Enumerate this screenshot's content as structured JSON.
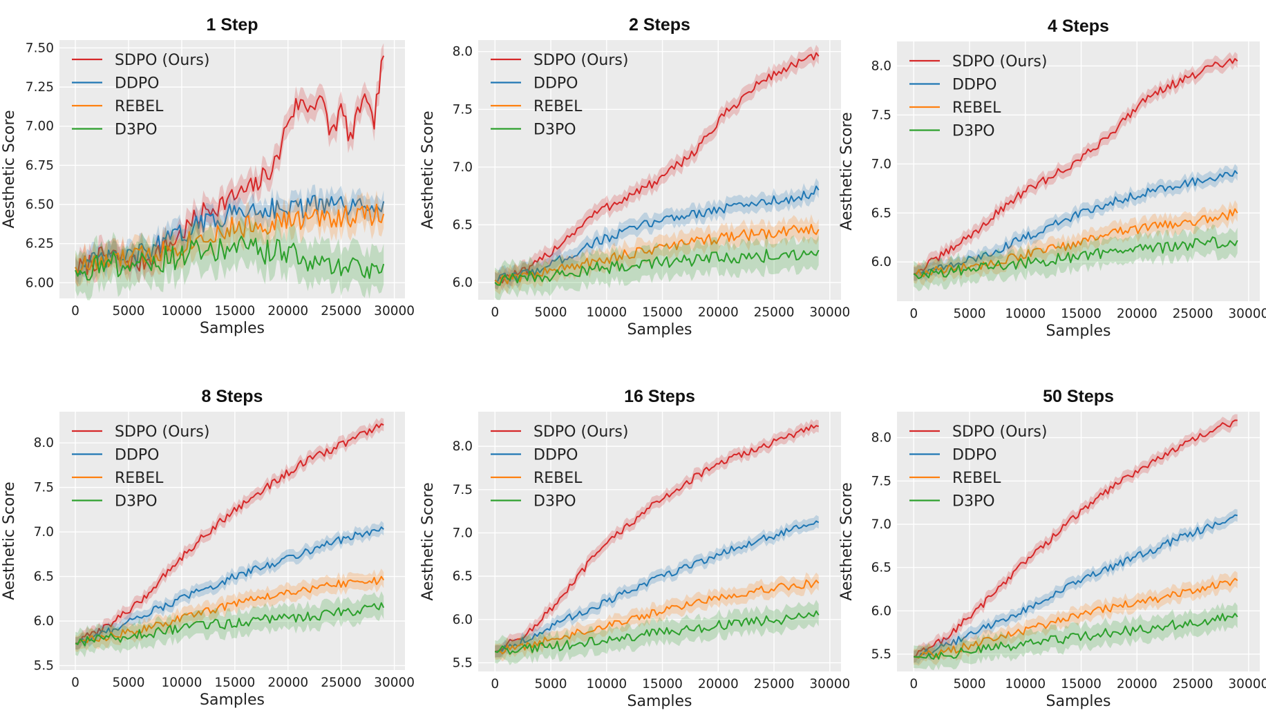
{
  "colors": {
    "SDPO (Ours)": "#d62728",
    "DDPO": "#1f77b4",
    "REBEL": "#ff7f0e",
    "D3PO": "#2ca02c",
    "plot_bg": "#ebebeb",
    "grid": "#ffffff"
  },
  "chart_data": [
    {
      "type": "line",
      "title": "1 Step",
      "xlabel": "Samples",
      "ylabel": "Aesthetic Score",
      "xlim": [
        -1500,
        31000
      ],
      "ylim": [
        5.9,
        7.55
      ],
      "xticks": [
        0,
        5000,
        10000,
        15000,
        20000,
        25000,
        30000
      ],
      "yticks": [
        6.0,
        6.25,
        6.5,
        6.75,
        7.0,
        7.25,
        7.5
      ],
      "ytick_labels": [
        "6.00",
        "6.25",
        "6.50",
        "6.75",
        "7.00",
        "7.25",
        "7.50"
      ],
      "grid": true,
      "legend": "top-left",
      "series": [
        {
          "name": "SDPO (Ours)",
          "x": [
            0,
            3000,
            6000,
            9000,
            12000,
            15000,
            17000,
            19000,
            20000,
            21000,
            22000,
            23000,
            24000,
            25000,
            26000,
            27000,
            28000,
            29000
          ],
          "y": [
            6.08,
            6.18,
            6.12,
            6.25,
            6.45,
            6.55,
            6.62,
            6.78,
            7.05,
            7.15,
            7.12,
            7.2,
            6.95,
            7.1,
            6.9,
            7.2,
            7.0,
            7.45
          ],
          "band": 0.08
        },
        {
          "name": "DDPO",
          "x": [
            0,
            3000,
            6000,
            9000,
            12000,
            15000,
            18000,
            21000,
            24000,
            27000,
            29000
          ],
          "y": [
            6.1,
            6.15,
            6.18,
            6.28,
            6.38,
            6.45,
            6.48,
            6.48,
            6.5,
            6.47,
            6.52
          ],
          "band": 0.07
        },
        {
          "name": "REBEL",
          "x": [
            0,
            3000,
            6000,
            9000,
            12000,
            15000,
            18000,
            21000,
            24000,
            27000,
            29000
          ],
          "y": [
            6.1,
            6.13,
            6.17,
            6.22,
            6.3,
            6.35,
            6.38,
            6.4,
            6.42,
            6.43,
            6.44
          ],
          "band": 0.09
        },
        {
          "name": "D3PO",
          "x": [
            0,
            3000,
            6000,
            9000,
            12000,
            15000,
            18000,
            20000,
            22000,
            24000,
            27000,
            29000
          ],
          "y": [
            6.08,
            6.12,
            6.12,
            6.16,
            6.2,
            6.22,
            6.2,
            6.2,
            6.13,
            6.1,
            6.1,
            6.12
          ],
          "band": 0.13
        }
      ]
    },
    {
      "type": "line",
      "title": "2 Steps",
      "xlabel": "Samples",
      "ylabel": "Aesthetic Score",
      "xlim": [
        -1500,
        31000
      ],
      "ylim": [
        5.85,
        8.1
      ],
      "xticks": [
        0,
        5000,
        10000,
        15000,
        20000,
        25000,
        30000
      ],
      "yticks": [
        6.0,
        6.5,
        7.0,
        7.5,
        8.0
      ],
      "ytick_labels": [
        "6.0",
        "6.5",
        "7.0",
        "7.5",
        "8.0"
      ],
      "grid": true,
      "legend": "top-left",
      "series": [
        {
          "name": "SDPO (Ours)",
          "x": [
            0,
            3000,
            6000,
            9000,
            12000,
            15000,
            18000,
            21000,
            24000,
            27000,
            29000
          ],
          "y": [
            6.02,
            6.1,
            6.35,
            6.6,
            6.75,
            6.9,
            7.15,
            7.5,
            7.75,
            7.9,
            7.96
          ],
          "band": 0.07
        },
        {
          "name": "DDPO",
          "x": [
            0,
            3000,
            6000,
            9000,
            12000,
            15000,
            18000,
            21000,
            24000,
            27000,
            29000
          ],
          "y": [
            6.02,
            6.08,
            6.2,
            6.35,
            6.45,
            6.55,
            6.6,
            6.65,
            6.7,
            6.73,
            6.8
          ],
          "band": 0.07
        },
        {
          "name": "REBEL",
          "x": [
            0,
            3000,
            6000,
            9000,
            12000,
            15000,
            18000,
            21000,
            24000,
            27000,
            29000
          ],
          "y": [
            6.02,
            6.06,
            6.12,
            6.18,
            6.25,
            6.3,
            6.35,
            6.4,
            6.42,
            6.45,
            6.46
          ],
          "band": 0.09
        },
        {
          "name": "D3PO",
          "x": [
            0,
            3000,
            6000,
            9000,
            12000,
            15000,
            18000,
            21000,
            24000,
            27000,
            29000
          ],
          "y": [
            6.0,
            6.04,
            6.08,
            6.12,
            6.15,
            6.18,
            6.2,
            6.22,
            6.23,
            6.25,
            6.28
          ],
          "band": 0.13
        }
      ]
    },
    {
      "type": "line",
      "title": "4 Steps",
      "xlabel": "Samples",
      "ylabel": "Aesthetic Score",
      "xlim": [
        -1500,
        31000
      ],
      "ylim": [
        5.6,
        8.25
      ],
      "xticks": [
        0,
        5000,
        10000,
        15000,
        20000,
        25000,
        30000
      ],
      "yticks": [
        6.0,
        6.5,
        7.0,
        7.5,
        8.0
      ],
      "ytick_labels": [
        "6.0",
        "6.5",
        "7.0",
        "7.5",
        "8.0"
      ],
      "grid": true,
      "legend": "top-left",
      "series": [
        {
          "name": "SDPO (Ours)",
          "x": [
            0,
            3000,
            6000,
            9000,
            12000,
            15000,
            18000,
            21000,
            24000,
            27000,
            29000
          ],
          "y": [
            5.88,
            6.1,
            6.35,
            6.65,
            6.85,
            7.05,
            7.35,
            7.7,
            7.85,
            8.0,
            8.05
          ],
          "band": 0.07
        },
        {
          "name": "DDPO",
          "x": [
            0,
            3000,
            6000,
            9000,
            12000,
            15000,
            18000,
            21000,
            24000,
            27000,
            29000
          ],
          "y": [
            5.88,
            5.95,
            6.05,
            6.2,
            6.35,
            6.5,
            6.62,
            6.72,
            6.8,
            6.85,
            6.9
          ],
          "band": 0.07
        },
        {
          "name": "REBEL",
          "x": [
            0,
            3000,
            6000,
            9000,
            12000,
            15000,
            18000,
            21000,
            24000,
            27000,
            29000
          ],
          "y": [
            5.88,
            5.92,
            5.97,
            6.05,
            6.12,
            6.2,
            6.3,
            6.35,
            6.4,
            6.45,
            6.5
          ],
          "band": 0.09
        },
        {
          "name": "D3PO",
          "x": [
            0,
            3000,
            6000,
            9000,
            12000,
            15000,
            18000,
            21000,
            24000,
            27000,
            29000
          ],
          "y": [
            5.88,
            5.9,
            5.95,
            5.98,
            6.02,
            6.06,
            6.1,
            6.13,
            6.17,
            6.2,
            6.22
          ],
          "band": 0.13
        }
      ]
    },
    {
      "type": "line",
      "title": "8 Steps",
      "xlabel": "Samples",
      "ylabel": "Aesthetic Score",
      "xlim": [
        -1500,
        31000
      ],
      "ylim": [
        5.45,
        8.35
      ],
      "xticks": [
        0,
        5000,
        10000,
        15000,
        20000,
        25000,
        30000
      ],
      "yticks": [
        5.5,
        6.0,
        6.5,
        7.0,
        7.5,
        8.0
      ],
      "ytick_labels": [
        "5.5",
        "6.0",
        "6.5",
        "7.0",
        "7.5",
        "8.0"
      ],
      "grid": true,
      "legend": "top-left",
      "series": [
        {
          "name": "SDPO (Ours)",
          "x": [
            0,
            3000,
            6000,
            9000,
            12000,
            15000,
            18000,
            21000,
            24000,
            27000,
            29000
          ],
          "y": [
            5.75,
            5.95,
            6.2,
            6.6,
            6.95,
            7.25,
            7.5,
            7.75,
            7.92,
            8.1,
            8.2
          ],
          "band": 0.07
        },
        {
          "name": "DDPO",
          "x": [
            0,
            3000,
            6000,
            9000,
            12000,
            15000,
            18000,
            21000,
            24000,
            27000,
            29000
          ],
          "y": [
            5.75,
            5.88,
            6.05,
            6.2,
            6.35,
            6.5,
            6.62,
            6.75,
            6.88,
            6.98,
            7.03
          ],
          "band": 0.07
        },
        {
          "name": "REBEL",
          "x": [
            0,
            3000,
            6000,
            9000,
            12000,
            15000,
            18000,
            21000,
            24000,
            27000,
            29000
          ],
          "y": [
            5.75,
            5.82,
            5.9,
            6.0,
            6.1,
            6.2,
            6.28,
            6.35,
            6.4,
            6.45,
            6.46
          ],
          "band": 0.09
        },
        {
          "name": "D3PO",
          "x": [
            0,
            3000,
            6000,
            9000,
            12000,
            15000,
            18000,
            21000,
            24000,
            27000,
            29000
          ],
          "y": [
            5.75,
            5.8,
            5.85,
            5.9,
            5.95,
            5.98,
            6.02,
            6.05,
            6.08,
            6.12,
            6.15
          ],
          "band": 0.13
        }
      ]
    },
    {
      "type": "line",
      "title": "16 Steps",
      "xlabel": "Samples",
      "ylabel": "Aesthetic Score",
      "xlim": [
        -1500,
        31000
      ],
      "ylim": [
        5.4,
        8.4
      ],
      "xticks": [
        0,
        5000,
        10000,
        15000,
        20000,
        25000,
        30000
      ],
      "yticks": [
        5.5,
        6.0,
        6.5,
        7.0,
        7.5,
        8.0
      ],
      "ytick_labels": [
        "5.5",
        "6.0",
        "6.5",
        "7.0",
        "7.5",
        "8.0"
      ],
      "grid": true,
      "legend": "top-left",
      "series": [
        {
          "name": "SDPO (Ours)",
          "x": [
            0,
            3000,
            6000,
            9000,
            12000,
            15000,
            18000,
            21000,
            24000,
            27000,
            29000
          ],
          "y": [
            5.63,
            5.85,
            6.25,
            6.75,
            7.1,
            7.4,
            7.65,
            7.85,
            8.0,
            8.15,
            8.23
          ],
          "band": 0.07
        },
        {
          "name": "DDPO",
          "x": [
            0,
            3000,
            6000,
            9000,
            12000,
            15000,
            18000,
            21000,
            24000,
            27000,
            29000
          ],
          "y": [
            5.63,
            5.78,
            5.98,
            6.15,
            6.32,
            6.5,
            6.65,
            6.8,
            6.93,
            7.05,
            7.12
          ],
          "band": 0.07
        },
        {
          "name": "REBEL",
          "x": [
            0,
            3000,
            6000,
            9000,
            12000,
            15000,
            18000,
            21000,
            24000,
            27000,
            29000
          ],
          "y": [
            5.63,
            5.7,
            5.8,
            5.9,
            6.0,
            6.1,
            6.2,
            6.28,
            6.35,
            6.4,
            6.42
          ],
          "band": 0.09
        },
        {
          "name": "D3PO",
          "x": [
            0,
            3000,
            6000,
            9000,
            12000,
            15000,
            18000,
            21000,
            24000,
            27000,
            29000
          ],
          "y": [
            5.63,
            5.66,
            5.7,
            5.75,
            5.8,
            5.85,
            5.9,
            5.95,
            5.98,
            6.02,
            6.05
          ],
          "band": 0.13
        }
      ]
    },
    {
      "type": "line",
      "title": "50 Steps",
      "xlabel": "Samples",
      "ylabel": "Aesthetic Score",
      "xlim": [
        -1500,
        31000
      ],
      "ylim": [
        5.3,
        8.3
      ],
      "xticks": [
        0,
        5000,
        10000,
        15000,
        20000,
        25000,
        30000
      ],
      "yticks": [
        5.5,
        6.0,
        6.5,
        7.0,
        7.5,
        8.0
      ],
      "ytick_labels": [
        "5.5",
        "6.0",
        "6.5",
        "7.0",
        "7.5",
        "8.0"
      ],
      "grid": true,
      "legend": "top-left",
      "series": [
        {
          "name": "SDPO (Ours)",
          "x": [
            0,
            3000,
            6000,
            9000,
            12000,
            15000,
            18000,
            21000,
            24000,
            27000,
            29000
          ],
          "y": [
            5.47,
            5.7,
            6.05,
            6.45,
            6.8,
            7.15,
            7.45,
            7.7,
            7.9,
            8.1,
            8.2
          ],
          "band": 0.07
        },
        {
          "name": "DDPO",
          "x": [
            0,
            3000,
            6000,
            9000,
            12000,
            15000,
            18000,
            21000,
            24000,
            27000,
            29000
          ],
          "y": [
            5.47,
            5.6,
            5.78,
            5.95,
            6.15,
            6.35,
            6.52,
            6.68,
            6.85,
            7.0,
            7.1
          ],
          "band": 0.07
        },
        {
          "name": "REBEL",
          "x": [
            0,
            3000,
            6000,
            9000,
            12000,
            15000,
            18000,
            21000,
            24000,
            27000,
            29000
          ],
          "y": [
            5.47,
            5.53,
            5.63,
            5.73,
            5.85,
            5.95,
            6.05,
            6.12,
            6.2,
            6.3,
            6.35
          ],
          "band": 0.09
        },
        {
          "name": "D3PO",
          "x": [
            0,
            3000,
            6000,
            9000,
            12000,
            15000,
            18000,
            21000,
            24000,
            27000,
            29000
          ],
          "y": [
            5.47,
            5.5,
            5.55,
            5.6,
            5.65,
            5.7,
            5.75,
            5.8,
            5.85,
            5.9,
            5.93
          ],
          "band": 0.13
        }
      ]
    }
  ]
}
